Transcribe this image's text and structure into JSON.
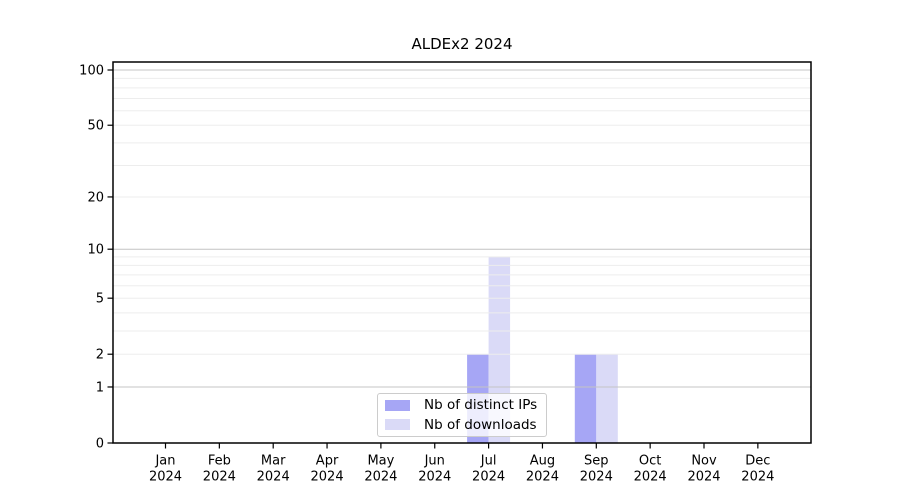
{
  "title": "ALDEx2 2024",
  "chart_data": {
    "type": "bar",
    "title": "ALDEx2 2024",
    "categories": [
      "Jan",
      "Feb",
      "Mar",
      "Apr",
      "May",
      "Jun",
      "Jul",
      "Aug",
      "Sep",
      "Oct",
      "Nov",
      "Dec"
    ],
    "category_year": "2024",
    "series": [
      {
        "name": "Nb of distinct IPs",
        "color": "#a6a6f5",
        "values": [
          0,
          0,
          0,
          0,
          0,
          0,
          2,
          0,
          2,
          0,
          0,
          0
        ]
      },
      {
        "name": "Nb of downloads",
        "color": "#dadaf7",
        "values": [
          0,
          0,
          0,
          0,
          0,
          0,
          9,
          0,
          2,
          0,
          0,
          0
        ]
      }
    ],
    "xlabel": "",
    "ylabel": "",
    "yscale": "log1p",
    "ytick_labels": [
      0,
      1,
      2,
      5,
      10,
      20,
      50,
      100
    ],
    "gridlines_major": [
      1,
      10,
      100
    ],
    "gridlines_minor": [
      2,
      3,
      4,
      5,
      6,
      7,
      8,
      9,
      20,
      30,
      40,
      50,
      60,
      70,
      80,
      90
    ],
    "ylim": [
      0,
      110
    ],
    "grid": true,
    "legend_position": "lower center"
  },
  "colors": {
    "background": "#ffffff",
    "bar_distinct_ips": "#a6a6f5",
    "bar_downloads": "#dadaf7",
    "grid_major": "#c4c4c4",
    "grid_minor": "#ededed",
    "spine": "#000000",
    "text": "#000000",
    "legend_border": "#cccccc"
  }
}
